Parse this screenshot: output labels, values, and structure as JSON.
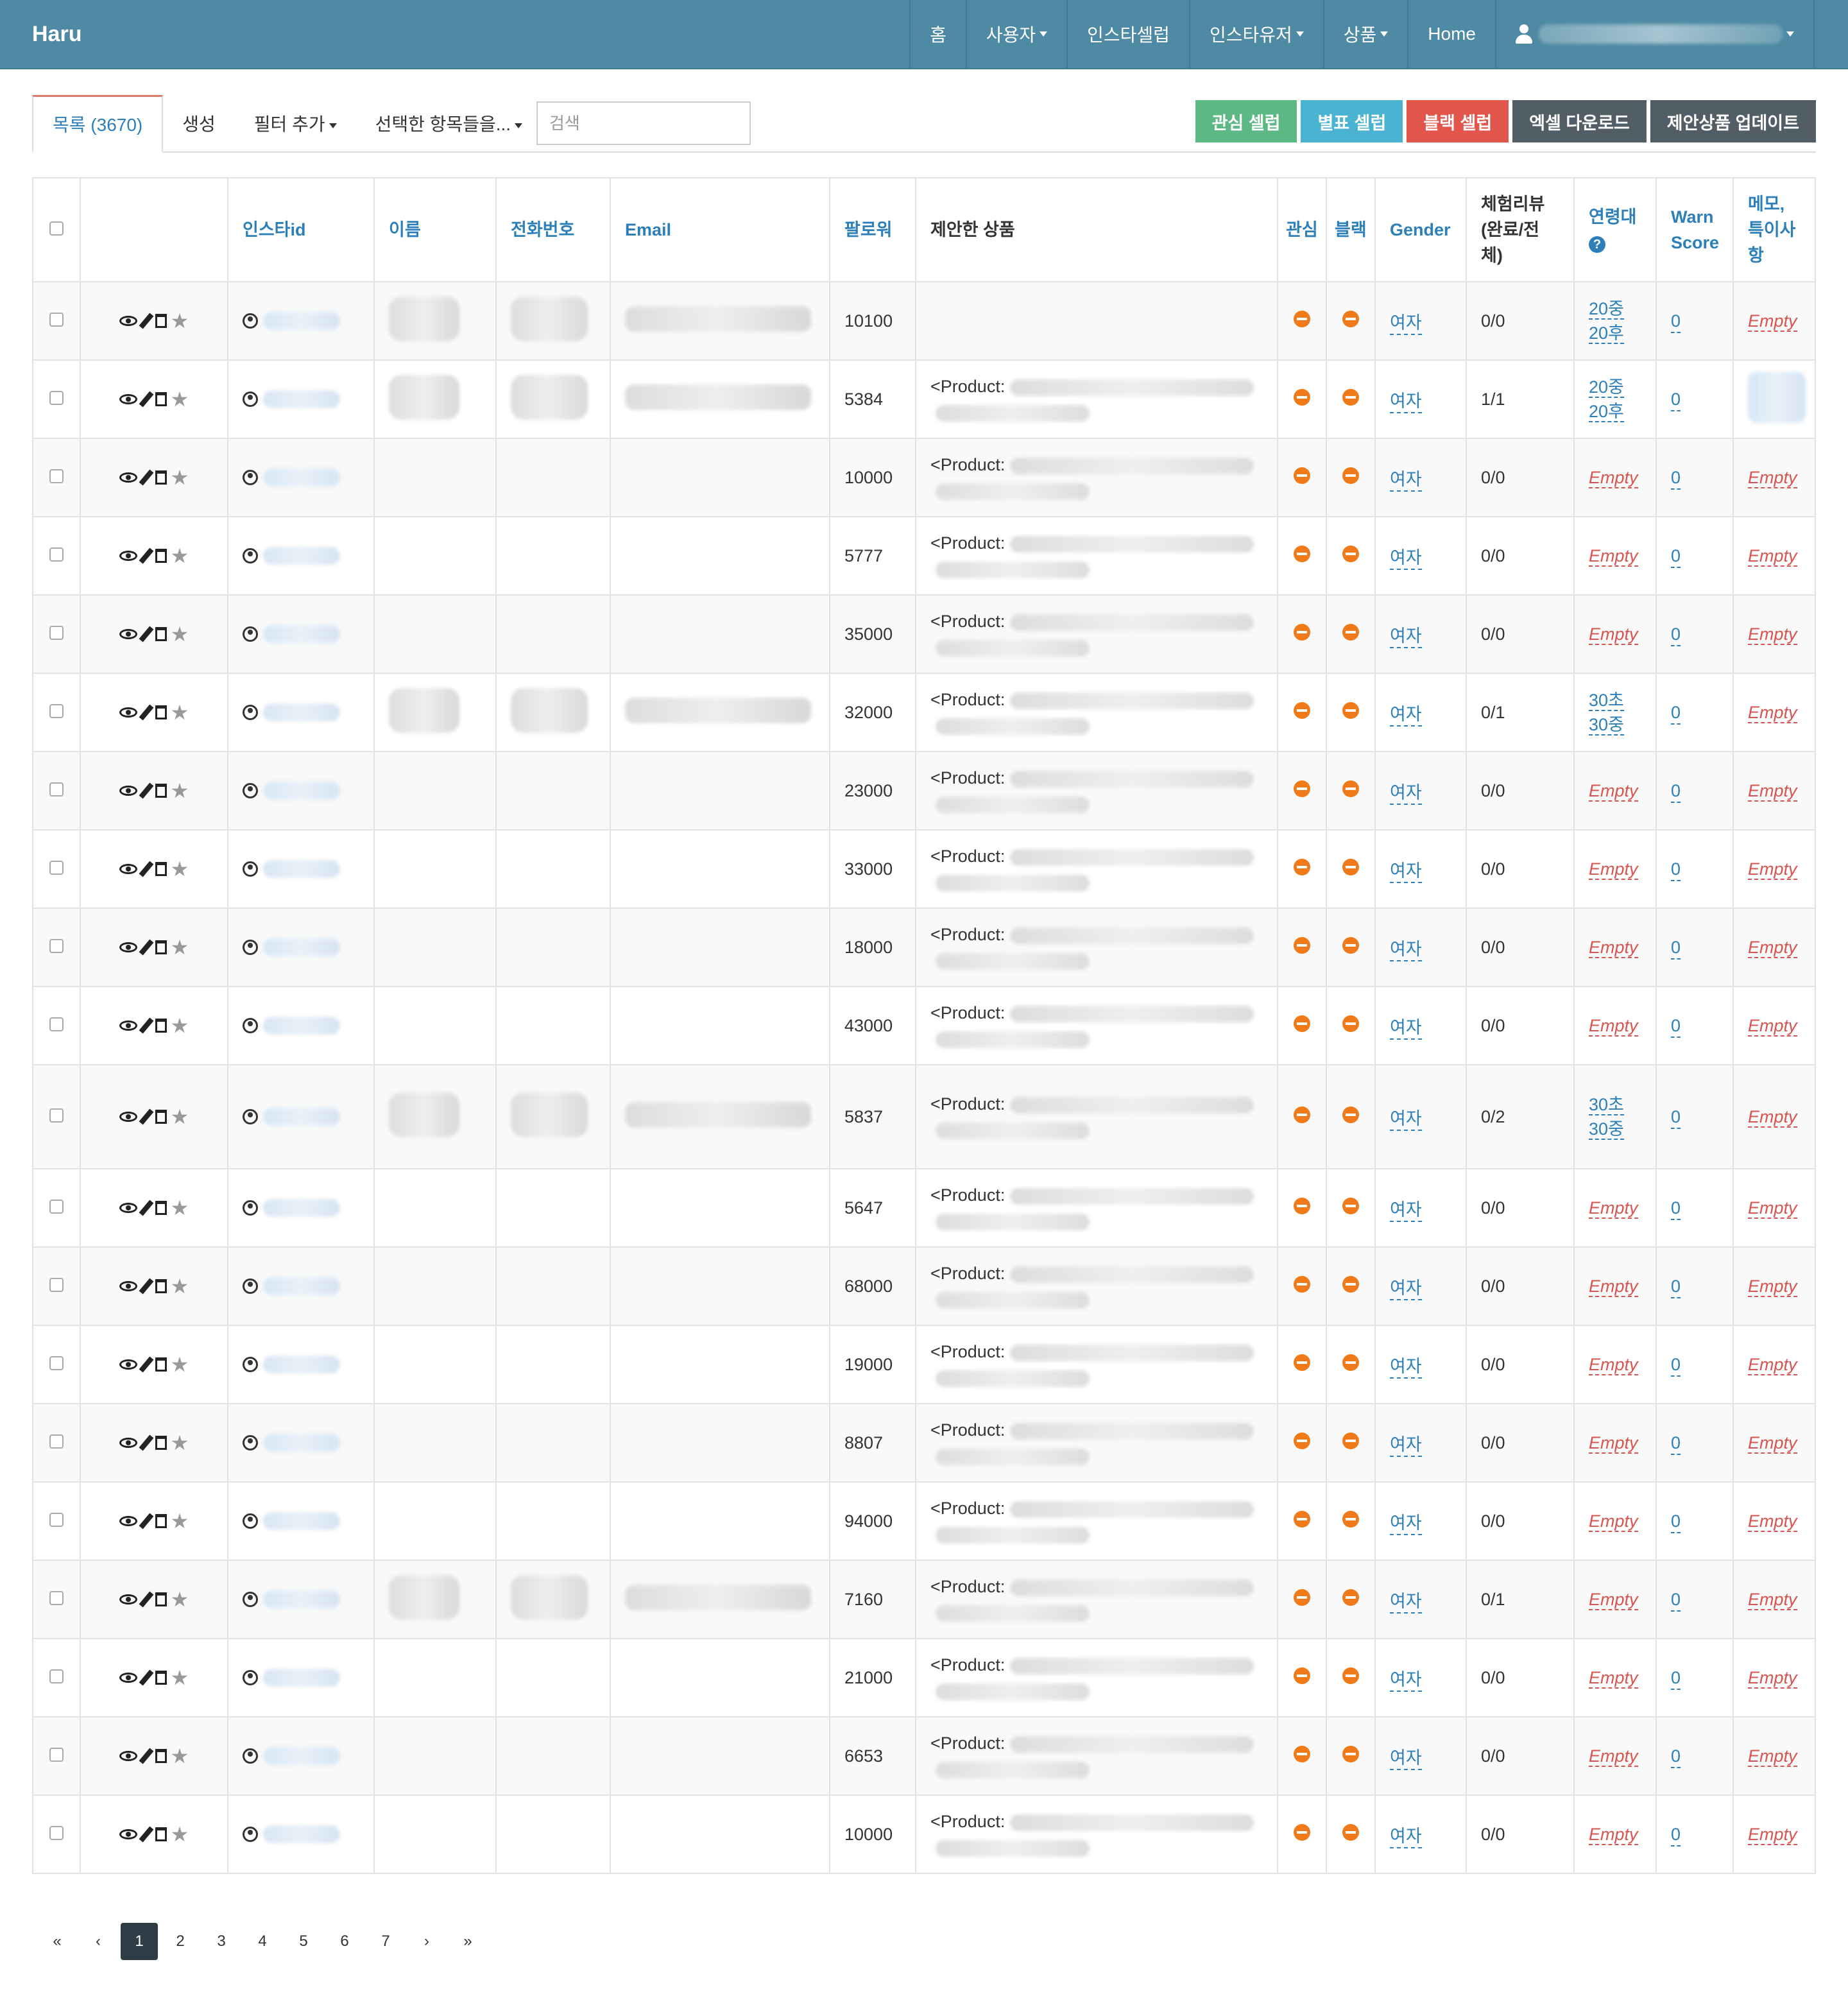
{
  "navbar": {
    "brand": "Haru",
    "items": [
      "홈",
      "사용자",
      "인스타셀럽",
      "인스타유저",
      "상품",
      "Home"
    ],
    "dropdown_items": [
      false,
      true,
      false,
      true,
      true,
      false
    ]
  },
  "toolbar": {
    "tabs": [
      "목록 (3670)",
      "생성",
      "필터 추가",
      "선택한 항목들을..."
    ],
    "search_placeholder": "검색",
    "buttons": [
      "관심 셀럽",
      "별표 셀럽",
      "블랙 셀럽",
      "엑셀 다운로드",
      "제안상품 업데이트"
    ]
  },
  "table": {
    "headers": {
      "instaid": "인스타id",
      "name": "이름",
      "phone": "전화번호",
      "email": "Email",
      "followers": "팔로워",
      "products": "제안한 상품",
      "interest": "관심",
      "black": "블랙",
      "gender": "Gender",
      "review": "체험리뷰(완료/전체)",
      "age": "연령대",
      "warn": "Warn Score",
      "memo": "메모, 특이사항"
    },
    "rows": [
      {
        "followers": "10100",
        "product": "",
        "gender": "여자",
        "review": "0/0",
        "age": [
          "20중",
          "20후"
        ],
        "warn": "0",
        "memo": "Empty",
        "has_contact": true
      },
      {
        "followers": "5384",
        "product": "<Product:",
        "gender": "여자",
        "review": "1/1",
        "age": [
          "20중",
          "20후"
        ],
        "warn": "0",
        "memo": "",
        "has_contact": true
      },
      {
        "followers": "10000",
        "product": "<Product:",
        "gender": "여자",
        "review": "0/0",
        "age": [
          "Empty"
        ],
        "warn": "0",
        "memo": "Empty",
        "has_contact": false
      },
      {
        "followers": "5777",
        "product": "<Product:",
        "gender": "여자",
        "review": "0/0",
        "age": [
          "Empty"
        ],
        "warn": "0",
        "memo": "Empty",
        "has_contact": false
      },
      {
        "followers": "35000",
        "product": "<Product:",
        "gender": "여자",
        "review": "0/0",
        "age": [
          "Empty"
        ],
        "warn": "0",
        "memo": "Empty",
        "has_contact": false
      },
      {
        "followers": "32000",
        "product": "<Product:",
        "gender": "여자",
        "review": "0/1",
        "age": [
          "30초",
          "30중"
        ],
        "warn": "0",
        "memo": "Empty",
        "has_contact": true
      },
      {
        "followers": "23000",
        "product": "<Product:",
        "gender": "여자",
        "review": "0/0",
        "age": [
          "Empty"
        ],
        "warn": "0",
        "memo": "Empty",
        "has_contact": false
      },
      {
        "followers": "33000",
        "product": "<Product:",
        "gender": "여자",
        "review": "0/0",
        "age": [
          "Empty"
        ],
        "warn": "0",
        "memo": "Empty",
        "has_contact": false
      },
      {
        "followers": "18000",
        "product": "<Product:",
        "gender": "여자",
        "review": "0/0",
        "age": [
          "Empty"
        ],
        "warn": "0",
        "memo": "Empty",
        "has_contact": false
      },
      {
        "followers": "43000",
        "product": "<Product:",
        "gender": "여자",
        "review": "0/0",
        "age": [
          "Empty"
        ],
        "warn": "0",
        "memo": "Empty",
        "has_contact": false
      },
      {
        "followers": "5837",
        "product": "<Product:",
        "gender": "여자",
        "review": "0/2",
        "age": [
          "30초",
          "30중"
        ],
        "warn": "0",
        "memo": "Empty",
        "has_contact": true
      },
      {
        "followers": "5647",
        "product": "<Product:",
        "gender": "여자",
        "review": "0/0",
        "age": [
          "Empty"
        ],
        "warn": "0",
        "memo": "Empty",
        "has_contact": false
      },
      {
        "followers": "68000",
        "product": "<Product:",
        "gender": "여자",
        "review": "0/0",
        "age": [
          "Empty"
        ],
        "warn": "0",
        "memo": "Empty",
        "has_contact": false
      },
      {
        "followers": "19000",
        "product": "<Product:",
        "gender": "여자",
        "review": "0/0",
        "age": [
          "Empty"
        ],
        "warn": "0",
        "memo": "Empty",
        "has_contact": false
      },
      {
        "followers": "8807",
        "product": "<Product:",
        "gender": "여자",
        "review": "0/0",
        "age": [
          "Empty"
        ],
        "warn": "0",
        "memo": "Empty",
        "has_contact": false
      },
      {
        "followers": "94000",
        "product": "<Product:",
        "gender": "여자",
        "review": "0/0",
        "age": [
          "Empty"
        ],
        "warn": "0",
        "memo": "Empty",
        "has_contact": false
      },
      {
        "followers": "7160",
        "product": "<Product:",
        "gender": "여자",
        "review": "0/1",
        "age": [
          "Empty"
        ],
        "warn": "0",
        "memo": "Empty",
        "has_contact": true
      },
      {
        "followers": "21000",
        "product": "<Product:",
        "gender": "여자",
        "review": "0/0",
        "age": [
          "Empty"
        ],
        "warn": "0",
        "memo": "Empty",
        "has_contact": false
      },
      {
        "followers": "6653",
        "product": "<Product:",
        "gender": "여자",
        "review": "0/0",
        "age": [
          "Empty"
        ],
        "warn": "0",
        "memo": "Empty",
        "has_contact": false
      },
      {
        "followers": "10000",
        "product": "<Product:",
        "gender": "여자",
        "review": "0/0",
        "age": [
          "Empty"
        ],
        "warn": "0",
        "memo": "Empty",
        "has_contact": false
      }
    ]
  },
  "pagination": {
    "first": "«",
    "prev": "‹",
    "pages": [
      "1",
      "2",
      "3",
      "4",
      "5",
      "6",
      "7"
    ],
    "next": "›",
    "last": "»",
    "current": "1"
  }
}
